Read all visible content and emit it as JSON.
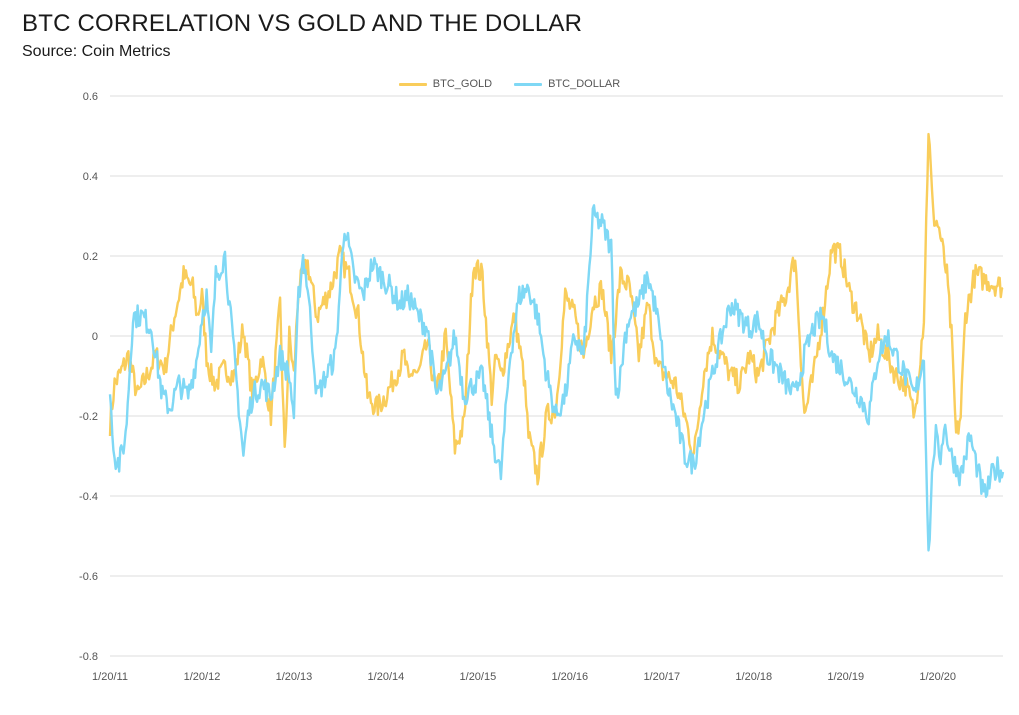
{
  "header": {
    "title": "BTC CORRELATION VS GOLD AND THE DOLLAR",
    "source": "Source: Coin Metrics"
  },
  "chart_data": {
    "type": "line",
    "xlabel": "",
    "ylabel": "",
    "ylim": [
      -0.8,
      0.6
    ],
    "yticks": [
      "0.6",
      "0.4",
      "0.2",
      "0",
      "-0.2",
      "-0.4",
      "-0.6",
      "-0.8"
    ],
    "yticks_values": [
      0.6,
      0.4,
      0.2,
      0,
      -0.2,
      -0.4,
      -0.6,
      -0.8
    ],
    "xlim": [
      2011.05,
      2020.76
    ],
    "xticks": [
      "1/20/11",
      "1/20/12",
      "1/20/13",
      "1/20/14",
      "1/20/15",
      "1/20/16",
      "1/20/17",
      "1/20/18",
      "1/20/19",
      "1/20/20"
    ],
    "xticks_values": [
      2011.05,
      2012.05,
      2013.05,
      2014.05,
      2015.05,
      2016.05,
      2017.05,
      2018.05,
      2019.05,
      2020.05
    ],
    "grid": "horizontal",
    "legend_position": "top-center",
    "series": [
      {
        "name": "BTC_GOLD",
        "color": "#f9cd5b",
        "x": [
          2011.05,
          2011.1,
          2011.15,
          2011.25,
          2011.35,
          2011.45,
          2011.55,
          2011.65,
          2011.75,
          2011.85,
          2011.95,
          2012.0,
          2012.05,
          2012.1,
          2012.15,
          2012.2,
          2012.3,
          2012.4,
          2012.5,
          2012.6,
          2012.7,
          2012.8,
          2012.9,
          2012.95,
          2013.0,
          2013.05,
          2013.1,
          2013.15,
          2013.2,
          2013.3,
          2013.45,
          2013.55,
          2013.65,
          2013.75,
          2013.85,
          2013.95,
          2014.05,
          2014.15,
          2014.25,
          2014.3,
          2014.35,
          2014.4,
          2014.5,
          2014.6,
          2014.7,
          2014.8,
          2014.9,
          2015.0,
          2015.1,
          2015.2,
          2015.25,
          2015.3,
          2015.35,
          2015.45,
          2015.55,
          2015.6,
          2015.7,
          2015.8,
          2015.9,
          2016.0,
          2016.1,
          2016.2,
          2016.3,
          2016.4,
          2016.5,
          2016.6,
          2016.7,
          2016.8,
          2016.9,
          2017.0,
          2017.1,
          2017.2,
          2017.3,
          2017.4,
          2017.5,
          2017.6,
          2017.7,
          2017.8,
          2017.9,
          2018.0,
          2018.1,
          2018.2,
          2018.3,
          2018.4,
          2018.5,
          2018.6,
          2018.7,
          2018.8,
          2018.9,
          2019.0,
          2019.1,
          2019.2,
          2019.3,
          2019.4,
          2019.5,
          2019.6,
          2019.7,
          2019.8,
          2019.9,
          2019.95,
          2020.0,
          2020.05,
          2020.08,
          2020.1,
          2020.15,
          2020.2,
          2020.25,
          2020.3,
          2020.35,
          2020.4,
          2020.45,
          2020.5,
          2020.55,
          2020.6,
          2020.65,
          2020.7,
          2020.76
        ],
        "y": [
          -0.22,
          -0.12,
          -0.1,
          -0.05,
          -0.15,
          -0.1,
          -0.05,
          -0.08,
          0.05,
          0.15,
          0.12,
          0.05,
          0.1,
          -0.05,
          -0.1,
          -0.12,
          -0.08,
          -0.1,
          0.02,
          -0.15,
          -0.05,
          -0.2,
          0.08,
          -0.3,
          0.0,
          -0.1,
          0.12,
          0.15,
          0.18,
          0.05,
          0.12,
          0.2,
          0.15,
          0.05,
          -0.15,
          -0.18,
          -0.15,
          -0.1,
          -0.05,
          -0.12,
          -0.08,
          -0.1,
          -0.02,
          -0.15,
          0.0,
          -0.28,
          -0.22,
          0.18,
          0.15,
          -0.15,
          -0.05,
          -0.1,
          -0.05,
          0.05,
          -0.1,
          -0.25,
          -0.35,
          -0.2,
          -0.18,
          0.1,
          0.05,
          -0.05,
          0.08,
          0.12,
          -0.05,
          0.15,
          0.12,
          -0.05,
          0.08,
          -0.08,
          -0.1,
          -0.12,
          -0.2,
          -0.3,
          -0.1,
          0.0,
          -0.05,
          -0.1,
          -0.12,
          -0.05,
          -0.1,
          -0.02,
          0.05,
          0.1,
          0.2,
          -0.2,
          -0.1,
          0.05,
          0.22,
          0.2,
          0.1,
          0.05,
          -0.05,
          0.0,
          -0.05,
          -0.1,
          -0.12,
          -0.2,
          0.05,
          0.52,
          0.3,
          0.28,
          0.25,
          0.22,
          0.15,
          0.0,
          -0.25,
          -0.2,
          0.05,
          0.1,
          0.15,
          0.15,
          0.14,
          0.14,
          0.13,
          0.13,
          0.12
        ],
        "y_fine": "see_script"
      },
      {
        "name": "BTC_DOLLAR",
        "color": "#7fd8f5",
        "y_fine": "see_script"
      }
    ]
  }
}
